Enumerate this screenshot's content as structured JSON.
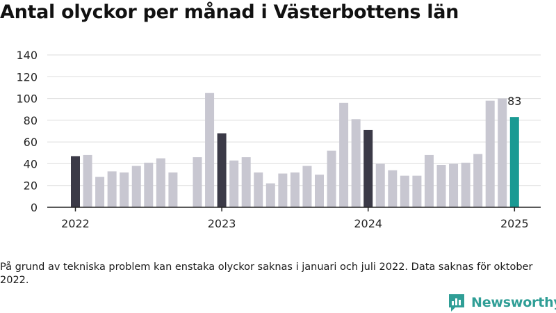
{
  "title": "Antal olyckor per månad i Västerbottens län",
  "footnote": "På grund av tekniska problem kan enstaka olyckor saknas i januari och juli 2022. Data saknas för oktober 2022.",
  "brand": {
    "name": "Newsworthy",
    "icon": "newsworthy-logo-icon",
    "color": "#2f9e96"
  },
  "colors": {
    "default": "#c8c7d1",
    "january": "#3b3a47",
    "latest": "#1a9a93",
    "grid": "#dddddd",
    "axis": "#222222"
  },
  "chart_data": {
    "type": "bar",
    "title": "Antal olyckor per månad i Västerbottens län",
    "xlabel": "",
    "ylabel": "",
    "ylim": [
      0,
      140
    ],
    "yticks": [
      "0",
      "20",
      "40",
      "60",
      "80",
      "100",
      "120",
      "140"
    ],
    "xticks": [
      "2022",
      "2023",
      "2024",
      "2025"
    ],
    "grid": true,
    "legend": "none",
    "categories": [
      "2022-01",
      "2022-02",
      "2022-03",
      "2022-04",
      "2022-05",
      "2022-06",
      "2022-07",
      "2022-08",
      "2022-09",
      "2022-10",
      "2022-11",
      "2022-12",
      "2023-01",
      "2023-02",
      "2023-03",
      "2023-04",
      "2023-05",
      "2023-06",
      "2023-07",
      "2023-08",
      "2023-09",
      "2023-10",
      "2023-11",
      "2023-12",
      "2024-01",
      "2024-02",
      "2024-03",
      "2024-04",
      "2024-05",
      "2024-06",
      "2024-07",
      "2024-08",
      "2024-09",
      "2024-10",
      "2024-11",
      "2024-12",
      "2025-01"
    ],
    "values": [
      47,
      48,
      28,
      33,
      32,
      38,
      41,
      45,
      32,
      null,
      46,
      105,
      68,
      43,
      46,
      32,
      22,
      31,
      32,
      38,
      30,
      52,
      96,
      81,
      71,
      40,
      34,
      29,
      29,
      48,
      39,
      40,
      41,
      49,
      98,
      100,
      83
    ],
    "annotation": {
      "category": "2025-01",
      "text": "83"
    }
  }
}
